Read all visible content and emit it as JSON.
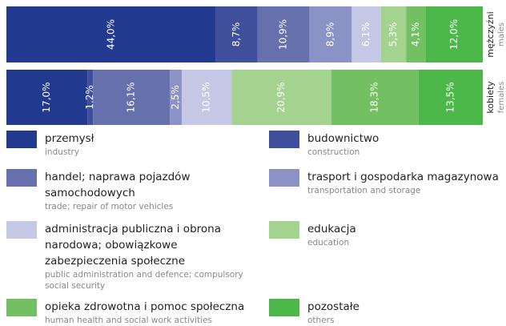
{
  "chart_data": {
    "type": "stacked-bar-horizontal",
    "categories": [
      "mężczyźni",
      "kobiety"
    ],
    "categories_en": [
      "males",
      "females"
    ],
    "series": [
      {
        "name": "przemysł",
        "name_en": "industry",
        "color": "#213a8f",
        "values": [
          44.0,
          17.0
        ],
        "value_labels": [
          "44,0%",
          "17,0%"
        ]
      },
      {
        "name": "budownictwo",
        "name_en": "construction",
        "color": "#3f4f9c",
        "values": [
          8.7,
          1.2
        ],
        "value_labels": [
          "8,7%",
          "1,2%"
        ]
      },
      {
        "name": "handel; naprawa pojazdów samochodowych",
        "name_en": "trade; repair of motor vehicles",
        "color": "#6670ad",
        "values": [
          10.9,
          16.1
        ],
        "value_labels": [
          "10,9%",
          "16,1%"
        ]
      },
      {
        "name": "trasport i gospodarka magazynowa",
        "name_en": "transportation and storage",
        "color": "#8b92c5",
        "values": [
          8.9,
          2.5
        ],
        "value_labels": [
          "8,9%",
          "2,5%"
        ]
      },
      {
        "name": "administracja publiczna i obrona narodowa; obowiązkowe zabezpieczenia społeczne",
        "name_en": "public administration and defence; compulsory social security",
        "color": "#c5c8e4",
        "values": [
          6.1,
          10.5
        ],
        "value_labels": [
          "6,1%",
          "10,5%"
        ]
      },
      {
        "name": "edukacja",
        "name_en": "education",
        "color": "#a3d38e",
        "values": [
          5.3,
          20.9
        ],
        "value_labels": [
          "5,3%",
          "20,9%"
        ]
      },
      {
        "name": "opieka zdrowotna i pomoc społeczna",
        "name_en": "human health and social work activities",
        "color": "#73c062",
        "values": [
          4.1,
          18.3
        ],
        "value_labels": [
          "4,1%",
          "18,3%"
        ]
      },
      {
        "name": "pozostałe",
        "name_en": "others",
        "color": "#4db84a",
        "values": [
          12.0,
          13.5
        ],
        "value_labels": [
          "12,0%",
          "13,5%"
        ]
      }
    ]
  }
}
